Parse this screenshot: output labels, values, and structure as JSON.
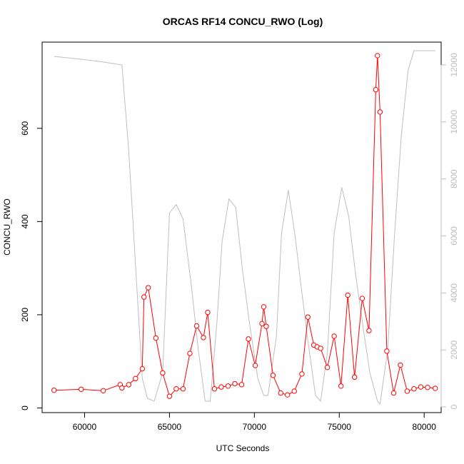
{
  "chart_data": {
    "type": "line",
    "title": "ORCAS RF14 CONCU_RWO (Log)",
    "xlabel": "UTC Seconds",
    "ylabel": "CONCU_RWO",
    "y2label": "",
    "xlim": [
      57500,
      81000
    ],
    "ylim": [
      -10,
      785
    ],
    "y2lim": [
      -200,
      12800
    ],
    "x_ticks": [
      60000,
      65000,
      70000,
      75000,
      80000
    ],
    "y_ticks": [
      0,
      200,
      400,
      600
    ],
    "y2_ticks": [
      0,
      2000,
      4000,
      6000,
      8000,
      10000,
      12000
    ],
    "grid": false,
    "series": [
      {
        "axis": "left",
        "color": "#ff0000",
        "marker": "open-circle",
        "x": [
          58200,
          59800,
          61100,
          62100,
          62200,
          62600,
          63000,
          63400,
          63500,
          63750,
          64200,
          64600,
          65000,
          65400,
          65800,
          66200,
          66600,
          67000,
          67250,
          67650,
          68050,
          68450,
          68850,
          69250,
          69650,
          70050,
          70450,
          70550,
          70700,
          71100,
          71550,
          71950,
          72350,
          72800,
          73150,
          73500,
          73700,
          73900,
          74300,
          74700,
          75100,
          75500,
          75900,
          76350,
          76750,
          77150,
          77250,
          77400,
          77800,
          78200,
          78600,
          79000,
          79400,
          79800,
          80200,
          80650
        ],
        "values": [
          38,
          40,
          37,
          50,
          43,
          50,
          63,
          84,
          238,
          258,
          150,
          75,
          25,
          41,
          41,
          117,
          176,
          151,
          205,
          41,
          45,
          47,
          52,
          50,
          148,
          91,
          181,
          217,
          175,
          70,
          32,
          28,
          36,
          73,
          195,
          135,
          131,
          128,
          87,
          154,
          47,
          242,
          66,
          235,
          166,
          683,
          756,
          635,
          122,
          32,
          92,
          36,
          41,
          45,
          44,
          42
        ]
      },
      {
        "axis": "right",
        "color": "#bebebe",
        "marker": "none",
        "x": [
          58200,
          59800,
          61100,
          62200,
          62600,
          63000,
          63400,
          63700,
          64100,
          64600,
          65000,
          65400,
          65800,
          66300,
          66700,
          67100,
          67400,
          67800,
          68100,
          68500,
          68900,
          69300,
          69700,
          70200,
          70550,
          70800,
          71300,
          71600,
          72000,
          72400,
          72800,
          73200,
          73600,
          73900,
          74300,
          74700,
          75150,
          75550,
          75950,
          76400,
          76800,
          77250,
          77400,
          77850,
          78250,
          78650,
          79050,
          79400,
          79800,
          80650
        ],
        "values": [
          12300,
          12200,
          12100,
          12000,
          9000,
          5000,
          1000,
          300,
          200,
          1200,
          6800,
          7100,
          6600,
          4200,
          2000,
          200,
          200,
          3000,
          5800,
          7300,
          7000,
          4800,
          3000,
          1000,
          400,
          400,
          2500,
          6100,
          7600,
          6000,
          4000,
          2100,
          400,
          200,
          1900,
          6100,
          7700,
          6700,
          4700,
          2800,
          1200,
          200,
          100,
          2000,
          6000,
          9500,
          11800,
          12500,
          12500,
          12500
        ]
      }
    ]
  }
}
